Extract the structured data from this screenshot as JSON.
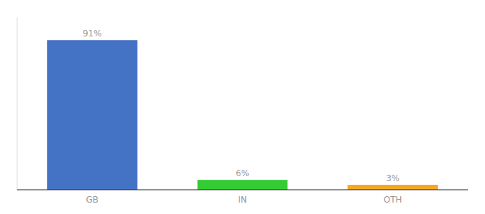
{
  "chart_data": {
    "type": "bar",
    "categories": [
      "GB",
      "IN",
      "OTH"
    ],
    "values": [
      91,
      6,
      3
    ],
    "value_labels": [
      "91%",
      "6%",
      "3%"
    ],
    "colors": [
      "#4472C4",
      "#33CC33",
      "#F5A623"
    ],
    "ylim": [
      0,
      105
    ],
    "data_labels": true,
    "tick_labels": "x",
    "grid": false
  }
}
